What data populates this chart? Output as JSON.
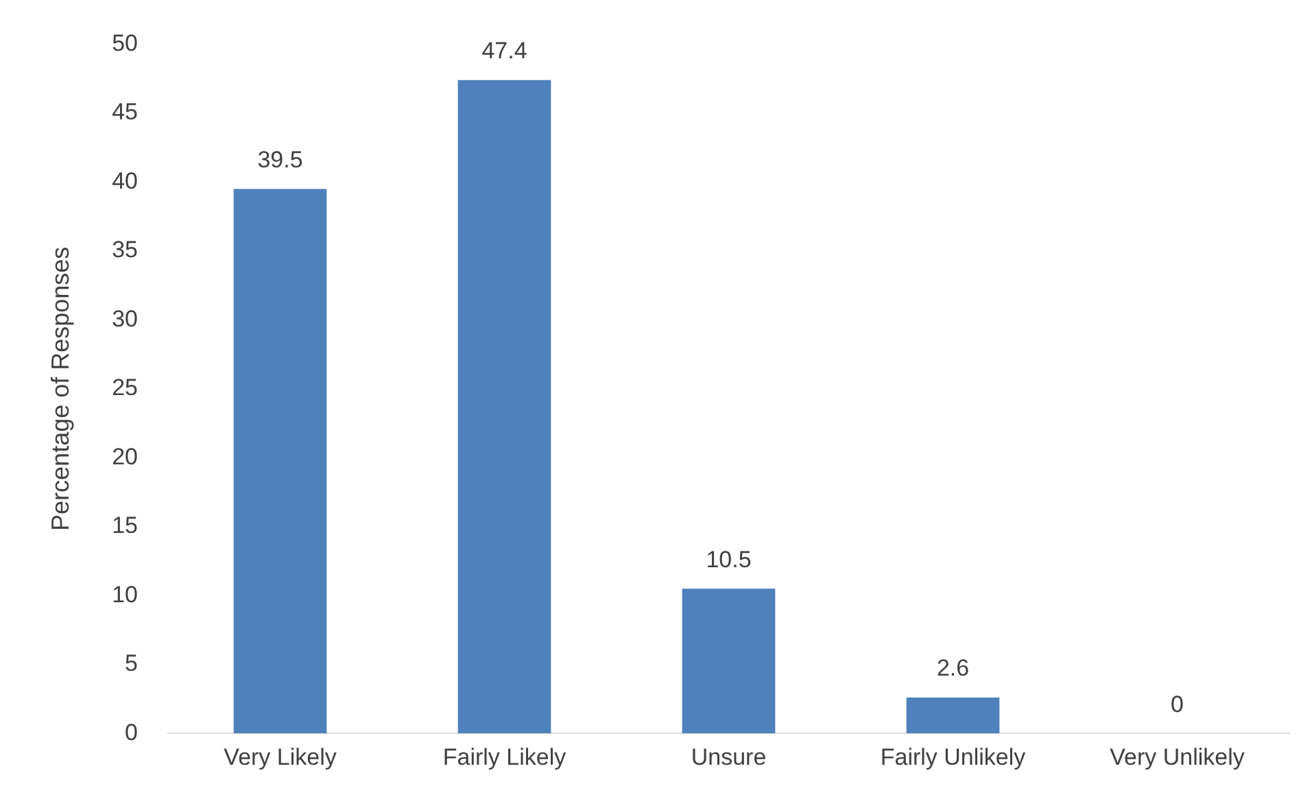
{
  "chart_data": {
    "type": "bar",
    "ylabel": "Percentage of Responses",
    "categories": [
      "Very Likely",
      "Fairly Likely",
      "Unsure",
      "Fairly Unlikely",
      "Very Unlikely"
    ],
    "values": [
      39.5,
      47.4,
      10.5,
      2.6,
      0
    ],
    "color": "#4f81bd",
    "ylim": [
      0,
      50
    ],
    "yticks": [
      0,
      5,
      10,
      15,
      20,
      25,
      30,
      35,
      40,
      45,
      50
    ],
    "grid": false,
    "legend": false,
    "data_labels": true
  }
}
